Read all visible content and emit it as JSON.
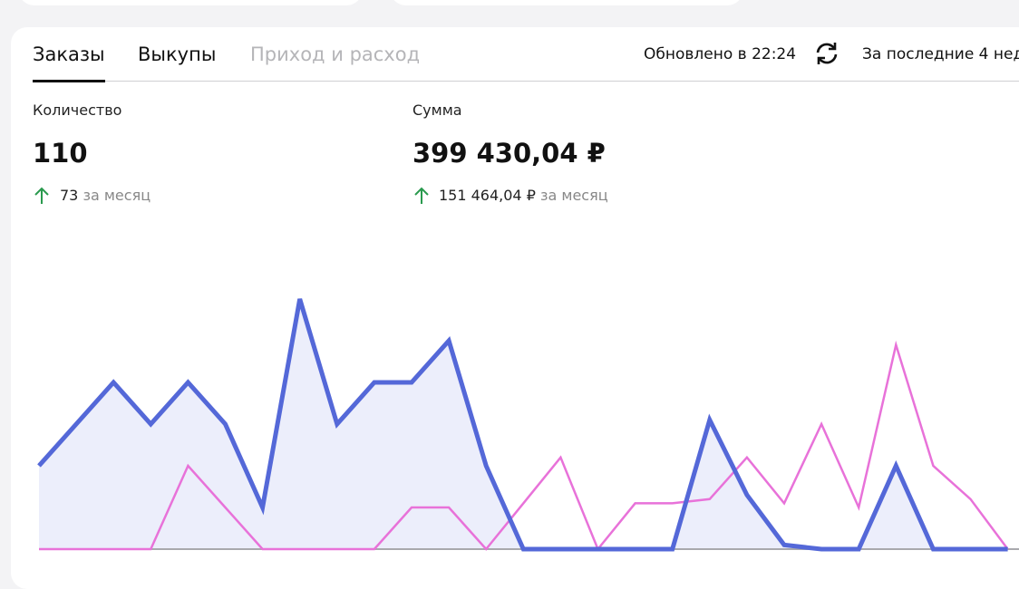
{
  "tabs": [
    "Заказы",
    "Выкупы",
    "Приход и расход"
  ],
  "updated": "Обновлено в 22:24",
  "period": "За последние 4 нед",
  "stats": [
    {
      "label": "Количество",
      "value": "110",
      "delta": "73",
      "delta_note": "за месяц"
    },
    {
      "label": "Сумма",
      "value": "399 430,04 ₽",
      "delta": "151 464,04 ₽",
      "delta_note": "за месяц"
    }
  ],
  "chart_data": {
    "type": "line",
    "categories": [
      null,
      null,
      null,
      null,
      null,
      null,
      null,
      null,
      null,
      null,
      null,
      null,
      null,
      null,
      null,
      null,
      null,
      null,
      null,
      null,
      null,
      null,
      null,
      null,
      null,
      null,
      null
    ],
    "series": [
      {
        "color": "#5468d8",
        "fill": "#eceefb",
        "values": [
          2,
          3,
          4,
          3,
          4,
          3,
          1,
          6,
          3,
          4,
          4,
          5,
          2,
          0,
          0,
          0,
          0,
          0,
          3.1,
          1.3,
          0.1,
          0,
          0,
          2,
          0,
          0,
          0
        ]
      },
      {
        "color": "#e872d9",
        "values": [
          0,
          0,
          0,
          0,
          2,
          1,
          0,
          0,
          0,
          0,
          1,
          1,
          0,
          1.1,
          2.2,
          0,
          1.1,
          1.1,
          1.2,
          2.2,
          1.1,
          3,
          1,
          4.9,
          2,
          1.2,
          0
        ]
      }
    ],
    "ylim": [
      0,
      7
    ]
  }
}
